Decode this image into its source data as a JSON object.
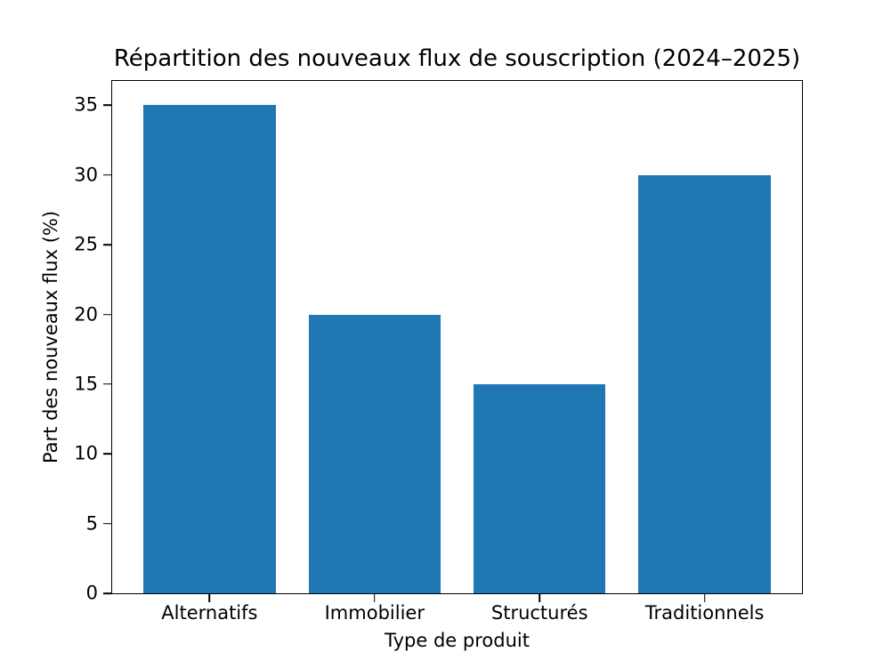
{
  "figure": {
    "background_color": "#ffffff",
    "frame_color": "#000000",
    "text_color": "#000000"
  },
  "chart_data": {
    "type": "bar",
    "title": "Répartition des nouveaux flux de souscription (2024–2025)",
    "xlabel": "Type de produit",
    "ylabel": "Part des nouveaux flux (%)",
    "categories": [
      "Alternatifs",
      "Immobilier",
      "Structurés",
      "Traditionnels"
    ],
    "values": [
      35,
      20,
      15,
      30
    ],
    "bar_color": "#1f77b4",
    "bar_width_units": 0.8,
    "ylim": [
      0,
      36.75
    ],
    "yticks": [
      0,
      5,
      10,
      15,
      20,
      25,
      30,
      35
    ],
    "grid": false,
    "legend": "none"
  }
}
